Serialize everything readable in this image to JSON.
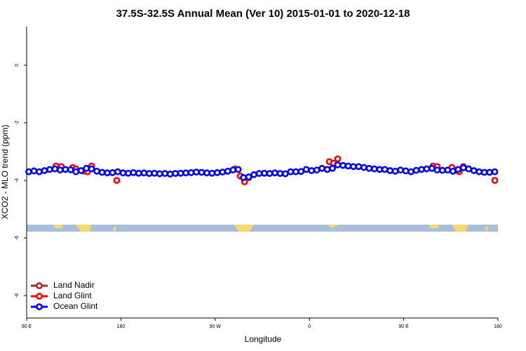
{
  "chart_data": {
    "type": "scatter",
    "title": "37.5S-32.5S Annual Mean (Ver 10)   2015-01-01 to 2020-12-18",
    "x_label": "Longitude",
    "y_label": "XCO2 - MLO trend (ppm)",
    "xlim": [
      90,
      540
    ],
    "xticks": [
      {
        "value": 90,
        "label": "90 E"
      },
      {
        "value": 180,
        "label": "180"
      },
      {
        "value": 270,
        "label": "90 W"
      },
      {
        "value": 360,
        "label": "0"
      },
      {
        "value": 450,
        "label": "90 E"
      },
      {
        "value": 540,
        "label": "180"
      }
    ],
    "ylim": [
      -8.78,
      1.34
    ],
    "yticks": [
      0,
      -2,
      -4,
      -6,
      -8
    ],
    "legend": "bottom-left",
    "series": [
      {
        "name": "Land Nadir",
        "color": "#a52a2a",
        "x": [],
        "values": []
      },
      {
        "name": "Land Glint",
        "color": "#ff0000",
        "x": [
          118,
          123,
          134,
          137,
          145,
          148,
          152,
          176,
          289,
          294,
          298,
          302,
          379,
          383,
          387,
          478,
          482,
          496,
          500,
          503,
          507,
          537
        ],
        "values": [
          -3.5,
          -3.52,
          -3.55,
          -3.6,
          -3.68,
          -3.7,
          -3.5,
          -4.0,
          -3.6,
          -3.85,
          -4.05,
          -3.9,
          -3.35,
          -3.4,
          -3.25,
          -3.5,
          -3.52,
          -3.55,
          -3.65,
          -3.7,
          -3.52,
          -4.0
        ]
      },
      {
        "name": "Ocean Glint",
        "color": "#0000ff",
        "x": [
          92,
          97,
          102,
          107,
          112,
          117,
          122,
          127,
          132,
          137,
          142,
          147,
          152,
          157,
          162,
          167,
          172,
          177,
          182,
          187,
          192,
          197,
          202,
          207,
          212,
          217,
          222,
          227,
          232,
          237,
          242,
          247,
          252,
          257,
          262,
          267,
          272,
          277,
          282,
          287,
          292,
          297,
          302,
          307,
          312,
          317,
          322,
          327,
          332,
          337,
          342,
          347,
          352,
          357,
          362,
          367,
          372,
          377,
          382,
          387,
          392,
          397,
          402,
          407,
          412,
          417,
          422,
          427,
          432,
          437,
          442,
          447,
          452,
          457,
          462,
          467,
          472,
          477,
          482,
          487,
          492,
          497,
          502,
          507,
          512,
          517,
          522,
          527,
          532,
          537
        ],
        "values": [
          -3.7,
          -3.67,
          -3.7,
          -3.66,
          -3.62,
          -3.6,
          -3.64,
          -3.62,
          -3.63,
          -3.7,
          -3.66,
          -3.58,
          -3.6,
          -3.68,
          -3.72,
          -3.74,
          -3.73,
          -3.7,
          -3.74,
          -3.75,
          -3.73,
          -3.75,
          -3.74,
          -3.76,
          -3.75,
          -3.77,
          -3.76,
          -3.78,
          -3.76,
          -3.75,
          -3.74,
          -3.73,
          -3.71,
          -3.72,
          -3.74,
          -3.75,
          -3.73,
          -3.71,
          -3.68,
          -3.64,
          -3.62,
          -3.9,
          -3.88,
          -3.8,
          -3.76,
          -3.75,
          -3.76,
          -3.74,
          -3.76,
          -3.77,
          -3.7,
          -3.7,
          -3.69,
          -3.62,
          -3.66,
          -3.64,
          -3.58,
          -3.62,
          -3.58,
          -3.46,
          -3.48,
          -3.5,
          -3.52,
          -3.52,
          -3.55,
          -3.58,
          -3.6,
          -3.62,
          -3.62,
          -3.66,
          -3.68,
          -3.64,
          -3.67,
          -3.7,
          -3.65,
          -3.62,
          -3.6,
          -3.58,
          -3.64,
          -3.65,
          -3.64,
          -3.68,
          -3.62,
          -3.56,
          -3.6,
          -3.66,
          -3.7,
          -3.72,
          -3.72,
          -3.7
        ]
      }
    ]
  }
}
